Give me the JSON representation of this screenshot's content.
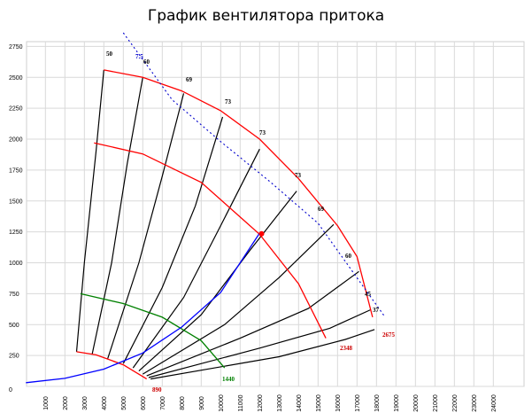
{
  "chart_data": {
    "type": "line",
    "title": "График вентилятора притока",
    "xlim": [
      0,
      25000
    ],
    "ylim": [
      0,
      2750
    ],
    "x_ticks": [
      1000,
      2000,
      3000,
      4000,
      5000,
      6000,
      7000,
      8000,
      9000,
      10000,
      11000,
      12000,
      13000,
      14000,
      15000,
      16000,
      17000,
      18000,
      19000,
      20000,
      21000,
      22000,
      23000,
      24000
    ],
    "y_ticks": [
      0,
      250,
      500,
      750,
      1000,
      1250,
      1500,
      1750,
      2000,
      2250,
      2500,
      2750
    ],
    "grid": true,
    "colors": {
      "max_speed": "#ff0000",
      "operating": "#ff0000",
      "efficiency": "#0000cc",
      "system": "#0000ff",
      "min_speed": "#008000",
      "radial": "#000000"
    },
    "speed_curves": [
      {
        "color": "red",
        "points": [
          [
            2600,
            280
          ],
          [
            3600,
            255
          ],
          [
            5000,
            175
          ],
          [
            6200,
            60
          ]
        ]
      },
      {
        "color": "red",
        "points": [
          [
            4000,
            2560
          ],
          [
            6000,
            2500
          ],
          [
            8000,
            2390
          ],
          [
            10000,
            2230
          ],
          [
            12000,
            2000
          ],
          [
            14000,
            1680
          ],
          [
            16000,
            1300
          ],
          [
            17000,
            1050
          ],
          [
            17800,
            560
          ]
        ]
      },
      {
        "color": "red",
        "points": [
          [
            3500,
            1970
          ],
          [
            6000,
            1880
          ],
          [
            9000,
            1650
          ],
          [
            12000,
            1230
          ],
          [
            14000,
            830
          ],
          [
            15400,
            390
          ]
        ]
      },
      {
        "color": "green",
        "points": [
          [
            2800,
            750
          ],
          [
            5000,
            670
          ],
          [
            7000,
            560
          ],
          [
            9000,
            370
          ],
          [
            10200,
            150
          ]
        ]
      }
    ],
    "radial_lines": [
      {
        "points": [
          [
            2600,
            280
          ],
          [
            3000,
            1000
          ],
          [
            3600,
            1900
          ],
          [
            4000,
            2560
          ]
        ]
      },
      {
        "points": [
          [
            3400,
            260
          ],
          [
            4400,
            1000
          ],
          [
            5200,
            1800
          ],
          [
            6000,
            2500
          ]
        ]
      },
      {
        "points": [
          [
            4200,
            225
          ],
          [
            5800,
            1000
          ],
          [
            7000,
            1700
          ],
          [
            8100,
            2370
          ]
        ]
      },
      {
        "points": [
          [
            5000,
            185
          ],
          [
            7000,
            800
          ],
          [
            8700,
            1460
          ],
          [
            10100,
            2180
          ]
        ]
      },
      {
        "points": [
          [
            5500,
            150
          ],
          [
            8100,
            720
          ],
          [
            10000,
            1300
          ],
          [
            12000,
            1920
          ]
        ]
      },
      {
        "points": [
          [
            5800,
            125
          ],
          [
            9000,
            580
          ],
          [
            11500,
            1100
          ],
          [
            13900,
            1580
          ]
        ]
      },
      {
        "points": [
          [
            6000,
            100
          ],
          [
            10200,
            500
          ],
          [
            13000,
            880
          ],
          [
            15800,
            1310
          ]
        ]
      },
      {
        "points": [
          [
            6200,
            85
          ],
          [
            11000,
            390
          ],
          [
            14500,
            630
          ],
          [
            17100,
            930
          ]
        ]
      },
      {
        "points": [
          [
            6300,
            72
          ],
          [
            12000,
            310
          ],
          [
            15600,
            470
          ],
          [
            17700,
            620
          ]
        ]
      },
      {
        "points": [
          [
            6400,
            60
          ],
          [
            13000,
            240
          ],
          [
            16400,
            380
          ],
          [
            17900,
            460
          ]
        ]
      }
    ],
    "efficiency_boundary": {
      "points": [
        [
          5000,
          2860
        ],
        [
          7500,
          2320
        ],
        [
          10000,
          1980
        ],
        [
          12500,
          1660
        ],
        [
          15000,
          1320
        ],
        [
          18400,
          570
        ]
      ]
    },
    "system_curve": {
      "points": [
        [
          0,
          30
        ],
        [
          2000,
          65
        ],
        [
          4000,
          140
        ],
        [
          6000,
          270
        ],
        [
          8000,
          480
        ],
        [
          10000,
          760
        ],
        [
          12000,
          1240
        ]
      ]
    },
    "operating_point": {
      "x": 12100,
      "y": 1235
    },
    "efficiency_labels": [
      "50",
      "7.5",
      "60",
      "69",
      "73",
      "73",
      "73",
      "69",
      "60",
      "45",
      "37"
    ],
    "point_labels": {
      "min_speed": "890",
      "green_end": "1440",
      "max_speed_end": "2675",
      "mid_speed_end": "2348"
    }
  }
}
